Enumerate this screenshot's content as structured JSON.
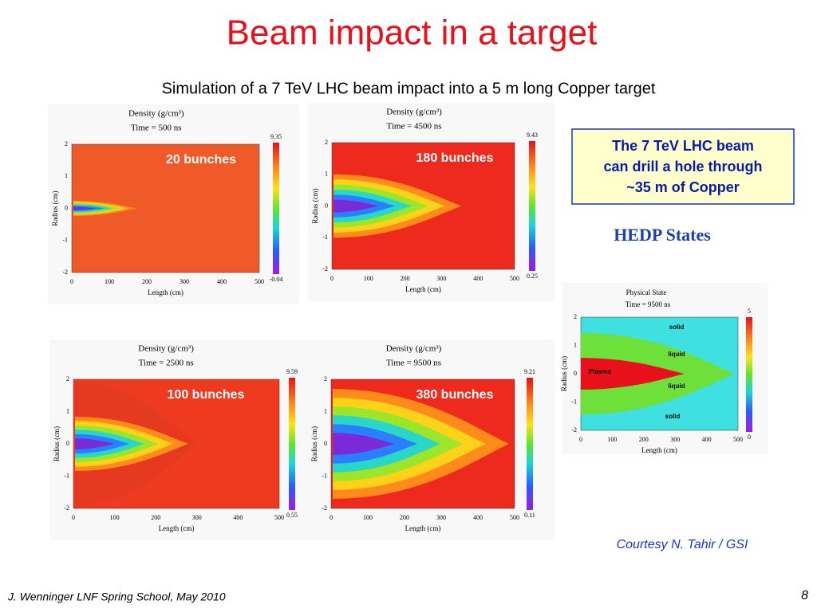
{
  "title": "Beam impact in a target",
  "subtitle": "Simulation of a 7 TeV LHC beam impact into a 5 m long Copper target",
  "axes": {
    "x_label": "Length (cm)",
    "y_label": "Radius (cm)",
    "xticks": [
      0,
      100,
      200,
      300,
      400,
      500
    ],
    "yticks": [
      2,
      1,
      0,
      -1,
      -2
    ]
  },
  "panels": [
    {
      "heading": "Density (g/cm³)",
      "time": "Time = 500 ns",
      "label": "20 bunches",
      "colorbar_max": 9.35,
      "colorbar_min": -0.04
    },
    {
      "heading": "Density (g/cm³)",
      "time": "Time = 4500 ns",
      "label": "180 bunches",
      "colorbar_max": 9.43,
      "colorbar_min": 0.25
    },
    {
      "heading": "Density (g/cm³)",
      "time": "Time = 2500 ns",
      "label": "100 bunches",
      "colorbar_max": 9.59,
      "colorbar_min": 0.55
    },
    {
      "heading": "Density (g/cm³)",
      "time": "Time = 9500 ns",
      "label": "380 bunches",
      "colorbar_max": 9.21,
      "colorbar_min": 0.11
    }
  ],
  "callout": [
    "The 7 TeV LHC beam",
    "can drill a hole through",
    "~35 m of Copper"
  ],
  "states": {
    "heading": "HEDP States",
    "title": "Physical State",
    "time": "Time = 9500 ns",
    "regions": [
      "solid",
      "liquid",
      "Plasma",
      "liquid",
      "solid"
    ],
    "colorbar_max": 5,
    "colorbar_min": 0
  },
  "credit": "Courtesy N. Tahir / GSI",
  "footer": {
    "text": "J. Wenninger LNF Spring School, May 2010",
    "page": "8"
  }
}
